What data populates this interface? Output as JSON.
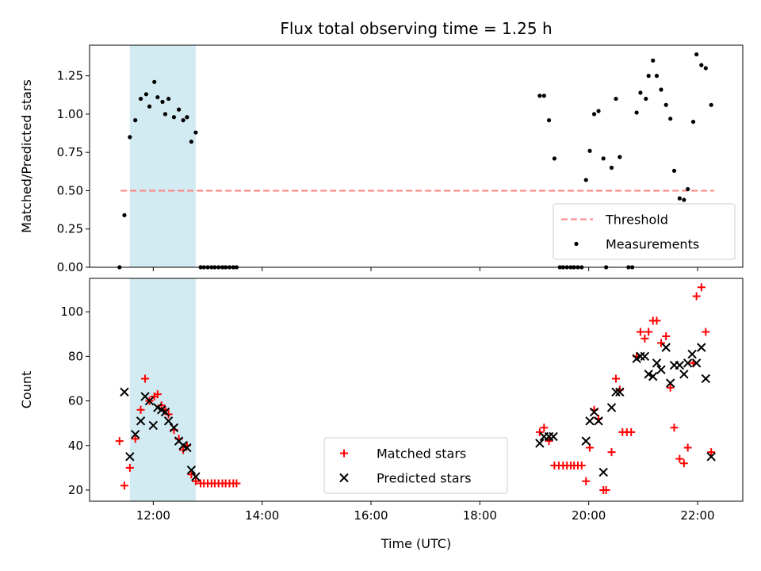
{
  "chart_data": {
    "title": "Flux total observing time = 1.25 h",
    "xlabel": "Time (UTC)",
    "x_ticks": [
      "12:00",
      "14:00",
      "16:00",
      "18:00",
      "20:00",
      "22:00"
    ],
    "x_tick_values": [
      12,
      14,
      16,
      18,
      20,
      22
    ],
    "xlim": [
      10.83,
      22.83
    ],
    "highlight_span": [
      11.57,
      12.78
    ],
    "colors": {
      "span": "#add8e6",
      "threshold": "#ff8080",
      "matched": "#ff0000",
      "predicted": "#000000",
      "measurements": "#000000"
    },
    "panels": [
      {
        "type": "scatter",
        "ylabel": "Matched/Predicted stars",
        "ylim": [
          0,
          1.45
        ],
        "y_ticks": [
          "0.00",
          "0.25",
          "0.50",
          "0.75",
          "1.00",
          "1.25"
        ],
        "y_tick_values": [
          0,
          0.25,
          0.5,
          0.75,
          1.0,
          1.25
        ],
        "legend_position": "lower-right",
        "threshold": {
          "name": "Threshold",
          "value": 0.5,
          "x_range": [
            11.4,
            22.3
          ]
        },
        "series": [
          {
            "name": "Measurements",
            "marker": "dot",
            "points": [
              [
                11.38,
                0.0
              ],
              [
                11.47,
                0.34
              ],
              [
                11.57,
                0.85
              ],
              [
                11.67,
                0.96
              ],
              [
                11.77,
                1.1
              ],
              [
                11.87,
                1.13
              ],
              [
                11.93,
                1.05
              ],
              [
                12.02,
                1.21
              ],
              [
                12.08,
                1.11
              ],
              [
                12.17,
                1.08
              ],
              [
                12.22,
                1.0
              ],
              [
                12.28,
                1.1
              ],
              [
                12.38,
                0.98
              ],
              [
                12.47,
                1.03
              ],
              [
                12.55,
                0.96
              ],
              [
                12.62,
                0.98
              ],
              [
                12.7,
                0.82
              ],
              [
                12.78,
                0.88
              ],
              [
                12.87,
                0.0
              ],
              [
                12.93,
                0.0
              ],
              [
                13.0,
                0.0
              ],
              [
                13.07,
                0.0
              ],
              [
                13.13,
                0.0
              ],
              [
                13.2,
                0.0
              ],
              [
                13.27,
                0.0
              ],
              [
                13.33,
                0.0
              ],
              [
                13.4,
                0.0
              ],
              [
                13.47,
                0.0
              ],
              [
                13.53,
                0.0
              ],
              [
                19.1,
                1.12
              ],
              [
                19.18,
                1.12
              ],
              [
                19.27,
                0.96
              ],
              [
                19.37,
                0.71
              ],
              [
                19.47,
                0.0
              ],
              [
                19.53,
                0.0
              ],
              [
                19.6,
                0.0
              ],
              [
                19.67,
                0.0
              ],
              [
                19.73,
                0.0
              ],
              [
                19.8,
                0.0
              ],
              [
                19.87,
                0.0
              ],
              [
                19.95,
                0.57
              ],
              [
                20.02,
                0.76
              ],
              [
                20.1,
                1.0
              ],
              [
                20.18,
                1.02
              ],
              [
                20.27,
                0.71
              ],
              [
                20.32,
                0.0
              ],
              [
                20.42,
                0.65
              ],
              [
                20.5,
                1.1
              ],
              [
                20.57,
                0.72
              ],
              [
                20.73,
                0.0
              ],
              [
                20.8,
                0.0
              ],
              [
                20.88,
                1.01
              ],
              [
                20.95,
                1.14
              ],
              [
                21.05,
                1.1
              ],
              [
                21.1,
                1.25
              ],
              [
                21.18,
                1.35
              ],
              [
                21.25,
                1.25
              ],
              [
                21.33,
                1.16
              ],
              [
                21.42,
                1.06
              ],
              [
                21.5,
                0.97
              ],
              [
                21.57,
                0.63
              ],
              [
                21.67,
                0.45
              ],
              [
                21.75,
                0.44
              ],
              [
                21.82,
                0.51
              ],
              [
                21.92,
                0.95
              ],
              [
                21.98,
                1.39
              ],
              [
                22.07,
                1.32
              ],
              [
                22.15,
                1.3
              ],
              [
                22.25,
                1.06
              ]
            ]
          }
        ]
      },
      {
        "type": "scatter",
        "ylabel": "Count",
        "ylim": [
          15,
          115
        ],
        "y_ticks": [
          "20",
          "40",
          "60",
          "80",
          "100"
        ],
        "y_tick_values": [
          20,
          40,
          60,
          80,
          100
        ],
        "legend_position": "lower-center",
        "series": [
          {
            "name": "Matched stars",
            "marker": "plus",
            "points": [
              [
                11.38,
                42
              ],
              [
                11.47,
                22
              ],
              [
                11.57,
                30
              ],
              [
                11.67,
                43
              ],
              [
                11.77,
                56
              ],
              [
                11.85,
                70
              ],
              [
                11.93,
                60
              ],
              [
                12.02,
                62
              ],
              [
                12.08,
                63
              ],
              [
                12.15,
                58
              ],
              [
                12.22,
                56
              ],
              [
                12.28,
                54
              ],
              [
                12.38,
                47
              ],
              [
                12.47,
                43
              ],
              [
                12.55,
                38
              ],
              [
                12.62,
                40
              ],
              [
                12.7,
                27
              ],
              [
                12.78,
                24
              ],
              [
                12.87,
                23
              ],
              [
                12.93,
                23
              ],
              [
                13.0,
                23
              ],
              [
                13.07,
                23
              ],
              [
                13.13,
                23
              ],
              [
                13.2,
                23
              ],
              [
                13.27,
                23
              ],
              [
                13.33,
                23
              ],
              [
                13.4,
                23
              ],
              [
                13.47,
                23
              ],
              [
                13.53,
                23
              ],
              [
                19.1,
                46
              ],
              [
                19.18,
                48
              ],
              [
                19.27,
                42
              ],
              [
                19.37,
                31
              ],
              [
                19.45,
                31
              ],
              [
                19.53,
                31
              ],
              [
                19.6,
                31
              ],
              [
                19.67,
                31
              ],
              [
                19.73,
                31
              ],
              [
                19.8,
                31
              ],
              [
                19.87,
                31
              ],
              [
                19.95,
                24
              ],
              [
                20.02,
                39
              ],
              [
                20.1,
                56
              ],
              [
                20.18,
                52
              ],
              [
                20.27,
                20
              ],
              [
                20.32,
                20
              ],
              [
                20.42,
                37
              ],
              [
                20.5,
                70
              ],
              [
                20.57,
                65
              ],
              [
                20.62,
                46
              ],
              [
                20.7,
                46
              ],
              [
                20.78,
                46
              ],
              [
                20.88,
                80
              ],
              [
                20.95,
                91
              ],
              [
                21.03,
                88
              ],
              [
                21.1,
                91
              ],
              [
                21.18,
                96
              ],
              [
                21.25,
                96
              ],
              [
                21.33,
                86
              ],
              [
                21.42,
                89
              ],
              [
                21.5,
                66
              ],
              [
                21.57,
                48
              ],
              [
                21.67,
                34
              ],
              [
                21.75,
                32
              ],
              [
                21.82,
                39
              ],
              [
                21.92,
                77
              ],
              [
                21.98,
                107
              ],
              [
                22.07,
                111
              ],
              [
                22.15,
                91
              ],
              [
                22.25,
                37
              ]
            ]
          },
          {
            "name": "Predicted stars",
            "marker": "x",
            "points": [
              [
                11.47,
                64
              ],
              [
                11.57,
                35
              ],
              [
                11.67,
                45
              ],
              [
                11.77,
                51
              ],
              [
                11.85,
                62
              ],
              [
                11.93,
                60
              ],
              [
                12.0,
                49
              ],
              [
                12.08,
                57
              ],
              [
                12.15,
                56
              ],
              [
                12.22,
                55
              ],
              [
                12.28,
                51
              ],
              [
                12.38,
                48
              ],
              [
                12.47,
                42
              ],
              [
                12.55,
                40
              ],
              [
                12.62,
                39
              ],
              [
                12.7,
                29
              ],
              [
                12.78,
                26
              ],
              [
                19.1,
                41
              ],
              [
                19.18,
                44
              ],
              [
                19.27,
                44
              ],
              [
                19.35,
                44
              ],
              [
                19.95,
                42
              ],
              [
                20.02,
                51
              ],
              [
                20.1,
                55
              ],
              [
                20.18,
                51
              ],
              [
                20.27,
                28
              ],
              [
                20.42,
                57
              ],
              [
                20.5,
                64
              ],
              [
                20.57,
                64
              ],
              [
                20.88,
                79
              ],
              [
                20.95,
                80
              ],
              [
                21.03,
                80
              ],
              [
                21.1,
                72
              ],
              [
                21.18,
                71
              ],
              [
                21.25,
                77
              ],
              [
                21.33,
                74
              ],
              [
                21.42,
                84
              ],
              [
                21.5,
                68
              ],
              [
                21.57,
                76
              ],
              [
                21.67,
                76
              ],
              [
                21.75,
                72
              ],
              [
                21.82,
                77
              ],
              [
                21.9,
                81
              ],
              [
                21.98,
                77
              ],
              [
                22.07,
                84
              ],
              [
                22.15,
                70
              ],
              [
                22.25,
                35
              ]
            ]
          }
        ]
      }
    ]
  }
}
